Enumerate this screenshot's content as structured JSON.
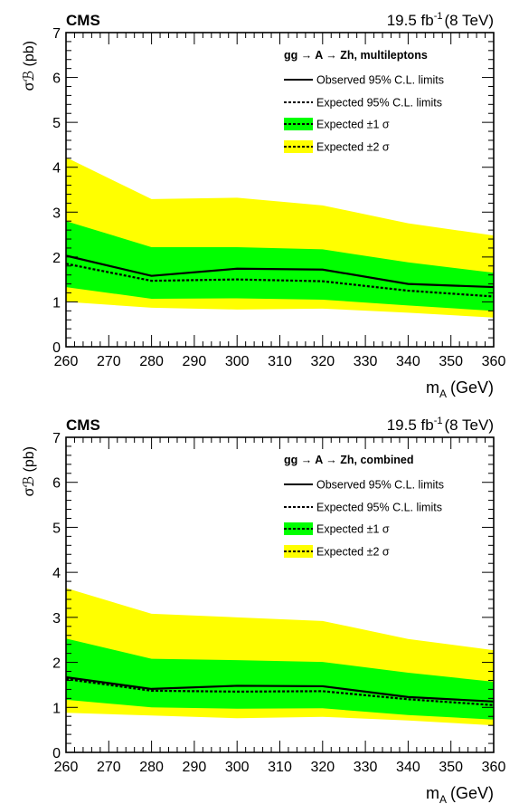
{
  "chart_data": [
    {
      "type": "line",
      "experiment": "CMS",
      "lumi_label": "19.5 fb",
      "lumi_exp": "-1",
      "energy": "(8 TeV)",
      "title": "gg → A → Zh, multileptons",
      "xlabel": "m",
      "xlabel_sub": "A",
      "xlabel_unit": "(GeV)",
      "ylabel": "σℬ (pb)",
      "xlim": [
        260,
        360
      ],
      "ylim": [
        0,
        7
      ],
      "xticks": [
        260,
        270,
        280,
        290,
        300,
        310,
        320,
        330,
        340,
        350,
        360
      ],
      "yticks": [
        0,
        1,
        2,
        3,
        4,
        5,
        6,
        7
      ],
      "legend_position": "top-right",
      "legend": [
        "Observed 95% C.L. limits",
        "Expected 95% C.L. limits",
        "Expected ±1 σ",
        "Expected ±2 σ"
      ],
      "colors": {
        "band_1sigma": "#00ff00",
        "band_2sigma": "#ffff00",
        "line": "#000000"
      },
      "x": [
        260,
        280,
        300,
        320,
        340,
        360
      ],
      "series": [
        {
          "name": "Observed 95% C.L. limits",
          "values": [
            2.03,
            1.58,
            1.74,
            1.72,
            1.4,
            1.33
          ]
        },
        {
          "name": "Expected 95% C.L. limits",
          "values": [
            1.85,
            1.47,
            1.5,
            1.46,
            1.25,
            1.12
          ]
        },
        {
          "name": "Expected ±1 σ",
          "low": [
            1.33,
            1.07,
            1.08,
            1.05,
            0.92,
            0.8
          ],
          "high": [
            2.8,
            2.22,
            2.22,
            2.17,
            1.88,
            1.65
          ]
        },
        {
          "name": "Expected ±2 σ",
          "low": [
            1.0,
            0.87,
            0.83,
            0.85,
            0.76,
            0.65
          ],
          "high": [
            4.22,
            3.29,
            3.32,
            3.15,
            2.75,
            2.48
          ]
        }
      ]
    },
    {
      "type": "line",
      "experiment": "CMS",
      "lumi_label": "19.5 fb",
      "lumi_exp": "-1",
      "energy": "(8 TeV)",
      "title": "gg → A → Zh, combined",
      "xlabel": "m",
      "xlabel_sub": "A",
      "xlabel_unit": "(GeV)",
      "ylabel": "σℬ (pb)",
      "xlim": [
        260,
        360
      ],
      "ylim": [
        0,
        7
      ],
      "xticks": [
        260,
        270,
        280,
        290,
        300,
        310,
        320,
        330,
        340,
        350,
        360
      ],
      "yticks": [
        0,
        1,
        2,
        3,
        4,
        5,
        6,
        7
      ],
      "legend_position": "top-right",
      "legend": [
        "Observed 95% C.L. limits",
        "Expected 95% C.L. limits",
        "Expected ±1 σ",
        "Expected ±2 σ"
      ],
      "colors": {
        "band_1sigma": "#00ff00",
        "band_2sigma": "#ffff00",
        "line": "#000000"
      },
      "x": [
        260,
        280,
        300,
        320,
        340,
        360
      ],
      "series": [
        {
          "name": "Observed 95% C.L. limits",
          "values": [
            1.67,
            1.41,
            1.48,
            1.47,
            1.23,
            1.13
          ]
        },
        {
          "name": "Expected 95% C.L. limits",
          "values": [
            1.63,
            1.37,
            1.35,
            1.36,
            1.18,
            1.05
          ]
        },
        {
          "name": "Expected ±1 σ",
          "low": [
            1.17,
            1.0,
            0.97,
            0.98,
            0.83,
            0.73
          ],
          "high": [
            2.53,
            2.08,
            2.05,
            2.01,
            1.77,
            1.57
          ]
        },
        {
          "name": "Expected ±2 σ",
          "low": [
            0.88,
            0.82,
            0.76,
            0.79,
            0.71,
            0.6
          ],
          "high": [
            3.65,
            3.08,
            3.0,
            2.92,
            2.52,
            2.27
          ]
        }
      ]
    }
  ]
}
